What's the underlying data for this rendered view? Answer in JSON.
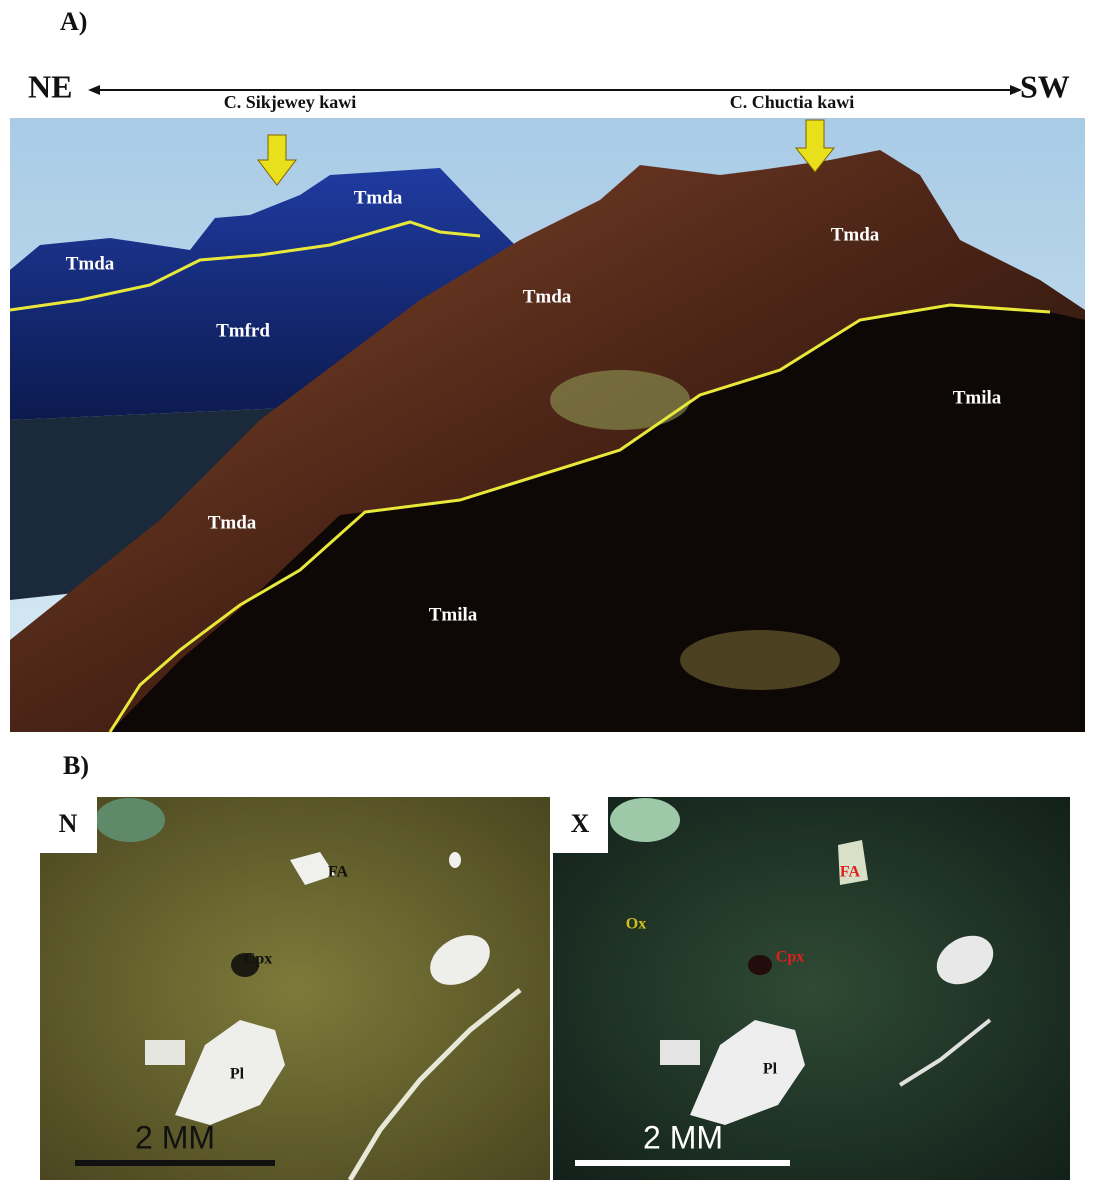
{
  "panel_a": {
    "label": "A)",
    "directions": [
      "NE",
      "SW"
    ],
    "peaks": [
      "C. Sikjewey kawi",
      "C. Chuctia kawi"
    ],
    "units": [
      "Tmda",
      "Tmda",
      "Tmfrd",
      "Tmda",
      "Tmda",
      "Tmila",
      "Tmda",
      "Tmila"
    ]
  },
  "panel_b": {
    "label": "B)",
    "views": [
      {
        "label": "N",
        "minerals": [
          "FA",
          "Cpx",
          "Pl"
        ],
        "scale": "2 MM"
      },
      {
        "label": "X",
        "minerals": [
          "FA",
          "Ox",
          "Cpx",
          "Pl"
        ],
        "scale": "2 MM"
      }
    ]
  }
}
